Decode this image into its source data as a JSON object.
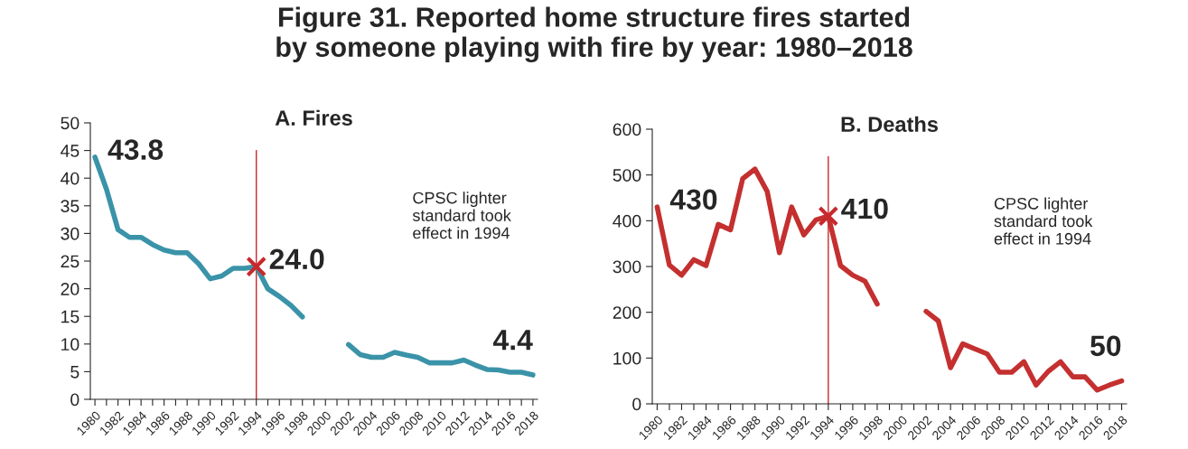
{
  "chart_data": [
    {
      "type": "line",
      "title": "Figure 31. Reported home structure fires started by someone playing with fire by year: 1980–2018",
      "subtitle": "A. Fires",
      "x": [
        1980,
        1981,
        1982,
        1983,
        1984,
        1985,
        1986,
        1987,
        1988,
        1989,
        1990,
        1991,
        1992,
        1993,
        1994,
        1995,
        1996,
        1997,
        1998,
        1999,
        2000,
        2001,
        2002,
        2003,
        2004,
        2005,
        2006,
        2007,
        2008,
        2009,
        2010,
        2011,
        2012,
        2013,
        2014,
        2015,
        2016,
        2017,
        2018
      ],
      "series": [
        {
          "color": "#3a93a8",
          "values": [
            43.8,
            38.0,
            30.7,
            29.3,
            29.3,
            28.0,
            27.0,
            26.5,
            26.5,
            24.5,
            21.8,
            22.3,
            23.7,
            23.7,
            24.0,
            20.0,
            18.6,
            17.0,
            14.9,
            null,
            null,
            null,
            9.9,
            8.1,
            7.6,
            7.6,
            8.5,
            8.0,
            7.6,
            6.6,
            6.6,
            6.6,
            7.1,
            6.2,
            5.4,
            5.3,
            4.9,
            4.9,
            4.4
          ]
        },
        {
          "type": "scatter",
          "x": [
            1994
          ],
          "values": [
            24.0
          ],
          "color": "#c8282d",
          "marker": "cross"
        }
      ],
      "xlim": [
        1979.6,
        2018.4
      ],
      "xticks": [
        1980,
        {
          "value": 1981,
          "label": null
        },
        1982,
        {
          "value": 1983,
          "label": null
        },
        1984,
        {
          "value": 1985,
          "label": null
        },
        1986,
        {
          "value": 1987,
          "label": null
        },
        1988,
        {
          "value": 1989,
          "label": null
        },
        1990,
        {
          "value": 1991,
          "label": null
        },
        1992,
        {
          "value": 1993,
          "label": null
        },
        1994,
        {
          "value": 1995,
          "label": null
        },
        1996,
        {
          "value": 1997,
          "label": null
        },
        1998,
        {
          "value": 1999,
          "label": null
        },
        2000,
        {
          "value": 2001,
          "label": null
        },
        2002,
        {
          "value": 2003,
          "label": null
        },
        2004,
        {
          "value": 2005,
          "label": null
        },
        2006,
        {
          "value": 2007,
          "label": null
        },
        2008,
        {
          "value": 2009,
          "label": null
        },
        2010,
        {
          "value": 2011,
          "label": null
        },
        2012,
        {
          "value": 2013,
          "label": null
        },
        2014,
        {
          "value": 2015,
          "label": null
        },
        2016,
        {
          "value": 2017,
          "label": null
        },
        2018
      ],
      "ylim": [
        0,
        50
      ],
      "yticks": [
        0,
        5,
        10,
        15,
        20,
        25,
        30,
        35,
        40,
        45,
        50
      ],
      "grid": false,
      "ref_lines": [
        {
          "axis": "x",
          "value": 1994,
          "color": "#c8282d"
        }
      ],
      "annotations": [
        {
          "text": "43.8",
          "x": 1980,
          "y": 43.8
        },
        {
          "text": "24.0",
          "x": 1994,
          "y": 24.0
        },
        {
          "text": "4.4",
          "x": 2018,
          "y": 4.4
        },
        "CPSC lighter\nstandard took\neffect in 1994"
      ]
    },
    {
      "type": "line",
      "subtitle": "B. Deaths",
      "x": [
        1980,
        1981,
        1982,
        1983,
        1984,
        1985,
        1986,
        1987,
        1988,
        1989,
        1990,
        1991,
        1992,
        1993,
        1994,
        1995,
        1996,
        1997,
        1998,
        1999,
        2000,
        2001,
        2002,
        2003,
        2004,
        2005,
        2006,
        2007,
        2008,
        2009,
        2010,
        2011,
        2012,
        2013,
        2014,
        2015,
        2016,
        2017,
        2018
      ],
      "series": [
        {
          "color": "#c4302f",
          "values": [
            430,
            303,
            281,
            315,
            302,
            392,
            380,
            492,
            513,
            464,
            330,
            430,
            369,
            402,
            410,
            302,
            281,
            268,
            218,
            null,
            null,
            null,
            202,
            181,
            79,
            131,
            120,
            109,
            69,
            69,
            92,
            41,
            71,
            92,
            59,
            59,
            30,
            41,
            50
          ]
        },
        {
          "type": "scatter",
          "x": [
            1994
          ],
          "values": [
            410
          ],
          "color": "#c8282d",
          "marker": "cross"
        }
      ],
      "xlim": [
        1979.6,
        2018.4
      ],
      "xticks": [
        1980,
        {
          "value": 1981,
          "label": null
        },
        1982,
        {
          "value": 1983,
          "label": null
        },
        1984,
        {
          "value": 1985,
          "label": null
        },
        1986,
        {
          "value": 1987,
          "label": null
        },
        1988,
        {
          "value": 1989,
          "label": null
        },
        1990,
        {
          "value": 1991,
          "label": null
        },
        1992,
        {
          "value": 1993,
          "label": null
        },
        1994,
        {
          "value": 1995,
          "label": null
        },
        1996,
        {
          "value": 1997,
          "label": null
        },
        1998,
        {
          "value": 1999,
          "label": null
        },
        2000,
        {
          "value": 2001,
          "label": null
        },
        2002,
        {
          "value": 2003,
          "label": null
        },
        2004,
        {
          "value": 2005,
          "label": null
        },
        2006,
        {
          "value": 2007,
          "label": null
        },
        2008,
        {
          "value": 2009,
          "label": null
        },
        2010,
        {
          "value": 2011,
          "label": null
        },
        2012,
        {
          "value": 2013,
          "label": null
        },
        2014,
        {
          "value": 2015,
          "label": null
        },
        2016,
        {
          "value": 2017,
          "label": null
        },
        2018
      ],
      "ylim": [
        0,
        600
      ],
      "yticks": [
        0,
        100,
        200,
        300,
        400,
        500,
        600
      ],
      "grid": false,
      "ref_lines": [
        {
          "axis": "x",
          "value": 1994,
          "color": "#c8282d"
        }
      ],
      "annotations": [
        {
          "text": "430",
          "x": 1980,
          "y": 430
        },
        {
          "text": "410",
          "x": 1994,
          "y": 410
        },
        {
          "text": "50",
          "x": 2018,
          "y": 50
        },
        "CPSC lighter\nstandard took\neffect in 1994"
      ]
    }
  ]
}
